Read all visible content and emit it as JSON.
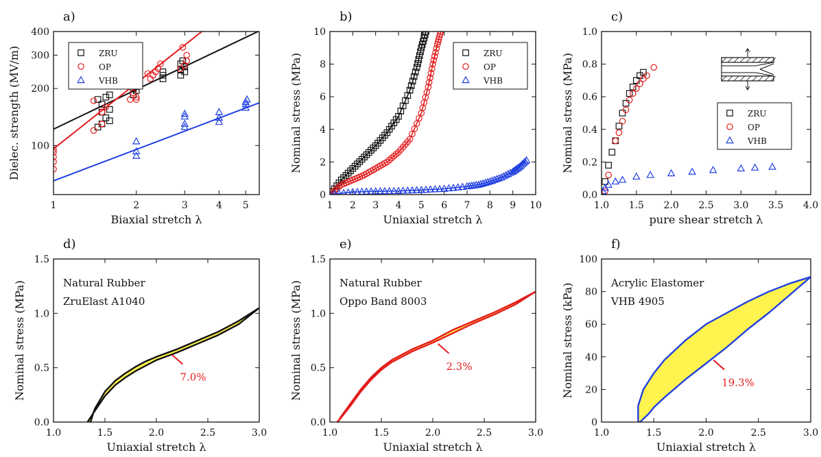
{
  "colors": {
    "zru": "#111111",
    "op": "#e31a1c",
    "vhb": "#1f3fe0",
    "fill": "#fff44f",
    "annotation": "#e31a1c"
  },
  "chart_data": [
    {
      "panel": "a)",
      "type": "scatter",
      "xlabel": "Biaxial stretch λ",
      "ylabel": "Dielec. strength (MV/m)",
      "xscale": "log",
      "yscale": "log",
      "xlim": [
        1,
        5.6
      ],
      "ylim": [
        55,
        400
      ],
      "xticks": [
        1,
        2,
        3,
        4,
        5
      ],
      "yticks": [
        100,
        200,
        300,
        400
      ],
      "ytick_labels": [
        "100",
        "200",
        "300",
        "400"
      ],
      "legend_position": "top-left",
      "series": [
        {
          "name": "ZRU",
          "marker": "square",
          "color_key": "zru",
          "x": [
            1.45,
            1.45,
            1.5,
            1.5,
            1.5,
            1.55,
            1.55,
            1.6,
            1.6,
            1.6,
            1.95,
            1.95,
            2.0,
            2.0,
            2.0,
            2.5,
            2.5,
            2.5,
            2.9,
            2.9,
            2.9,
            2.95,
            3.0,
            3.0
          ],
          "y": [
            125,
            175,
            130,
            150,
            165,
            140,
            180,
            135,
            155,
            185,
            185,
            200,
            195,
            215,
            205,
            225,
            235,
            245,
            235,
            250,
            270,
            280,
            245,
            260
          ],
          "fit": {
            "x": [
              1,
              5.6
            ],
            "y": [
              122,
              403
            ]
          }
        },
        {
          "name": "OP",
          "marker": "circle",
          "color_key": "op",
          "x": [
            1,
            1,
            1,
            1,
            1,
            1.4,
            1.4,
            1.5,
            1.5,
            1.55,
            1.9,
            1.9,
            1.95,
            2.0,
            2.0,
            2.05,
            2.05,
            2.2,
            2.25,
            2.3,
            2.35,
            2.4,
            2.45,
            2.9,
            2.95,
            3.0,
            3.05,
            3.05
          ],
          "y": [
            75,
            82,
            87,
            92,
            95,
            120,
            172,
            130,
            150,
            160,
            175,
            205,
            190,
            180,
            175,
            210,
            220,
            240,
            225,
            235,
            245,
            255,
            270,
            255,
            330,
            265,
            280,
            300
          ],
          "fit": {
            "x": [
              1,
              3.5
            ],
            "y": [
              96,
              405
            ]
          }
        },
        {
          "name": "VHB",
          "marker": "triangle",
          "color_key": "vhb",
          "x": [
            2.0,
            2.0,
            2.0,
            3.0,
            3.0,
            3.0,
            3.0,
            4.0,
            4.0,
            4.0,
            5.0,
            5.0,
            5.0,
            5.05
          ],
          "y": [
            88,
            93,
            105,
            125,
            130,
            142,
            147,
            133,
            140,
            150,
            158,
            165,
            170,
            175
          ],
          "fit": {
            "x": [
              1,
              5.6
            ],
            "y": [
              65,
              168
            ]
          }
        }
      ]
    },
    {
      "panel": "b)",
      "type": "line",
      "xlabel": "Uniaxial stretch λ",
      "ylabel": "Nominal stress (MPa)",
      "xlim": [
        1,
        10
      ],
      "ylim": [
        0,
        10
      ],
      "xticks": [
        1,
        2,
        3,
        4,
        5,
        6,
        7,
        8,
        9,
        10
      ],
      "yticks": [
        0,
        2,
        4,
        6,
        8,
        10
      ],
      "legend_position": "top-right",
      "series": [
        {
          "name": "ZRU",
          "marker": "square",
          "color_key": "zru",
          "x": [
            1.0,
            1.5,
            2.0,
            2.5,
            3.0,
            3.5,
            4.0,
            4.5,
            4.8,
            5.0,
            5.2
          ],
          "y": [
            0,
            0.9,
            1.6,
            2.3,
            3.0,
            3.8,
            4.8,
            6.4,
            7.8,
            9.0,
            10.0
          ]
        },
        {
          "name": "OP",
          "marker": "circle",
          "color_key": "op",
          "x": [
            1.0,
            1.5,
            2.0,
            2.5,
            3.0,
            3.5,
            4.0,
            4.5,
            5.0,
            5.3,
            5.5,
            5.7,
            5.85
          ],
          "y": [
            0,
            0.6,
            0.9,
            1.2,
            1.6,
            2.0,
            2.6,
            3.4,
            5.0,
            6.6,
            8.0,
            9.2,
            10.0
          ]
        },
        {
          "name": "VHB",
          "marker": "triangle",
          "color_key": "vhb",
          "x": [
            1.0,
            2.0,
            3.0,
            4.0,
            5.0,
            6.0,
            7.0,
            7.5,
            8.0,
            8.5,
            9.0,
            9.3,
            9.6
          ],
          "y": [
            0,
            0.15,
            0.2,
            0.22,
            0.28,
            0.35,
            0.5,
            0.6,
            0.8,
            1.05,
            1.4,
            1.7,
            2.1
          ]
        }
      ]
    },
    {
      "panel": "c)",
      "type": "scatter",
      "xlabel": "pure shear stretch λ",
      "ylabel": "Nominal stress (MPa)",
      "xlim": [
        1.0,
        4.0
      ],
      "ylim": [
        0,
        1.0
      ],
      "xticks": [
        1.0,
        1.5,
        2.0,
        2.5,
        3.0,
        3.5,
        4.0
      ],
      "yticks": [
        0.0,
        0.2,
        0.4,
        0.6,
        0.8,
        1.0
      ],
      "legend_position": "middle-right",
      "series": [
        {
          "name": "ZRU",
          "marker": "square",
          "color_key": "zru",
          "x": [
            1.05,
            1.1,
            1.15,
            1.2,
            1.25,
            1.3,
            1.35,
            1.4,
            1.45,
            1.5,
            1.55,
            1.6
          ],
          "y": [
            0.08,
            0.18,
            0.26,
            0.33,
            0.42,
            0.5,
            0.56,
            0.62,
            0.66,
            0.7,
            0.73,
            0.75
          ]
        },
        {
          "name": "OP",
          "marker": "circle",
          "color_key": "op",
          "x": [
            1.05,
            1.1,
            1.2,
            1.25,
            1.3,
            1.35,
            1.4,
            1.45,
            1.5,
            1.55,
            1.6,
            1.65,
            1.75
          ],
          "y": [
            0.02,
            0.12,
            0.33,
            0.38,
            0.45,
            0.52,
            0.58,
            0.62,
            0.65,
            0.68,
            0.71,
            0.73,
            0.78
          ]
        },
        {
          "name": "VHB",
          "marker": "triangle",
          "color_key": "vhb",
          "x": [
            1.02,
            1.05,
            1.1,
            1.2,
            1.3,
            1.5,
            1.7,
            2.0,
            2.3,
            2.6,
            3.0,
            3.2,
            3.45
          ],
          "y": [
            0.02,
            0.04,
            0.06,
            0.08,
            0.09,
            0.11,
            0.12,
            0.13,
            0.14,
            0.15,
            0.16,
            0.165,
            0.17
          ]
        }
      ]
    },
    {
      "panel": "d)",
      "type": "area",
      "xlabel": "Uniaxial stretch λ",
      "ylabel": "Nominal stress (MPa)",
      "xlim": [
        1.0,
        3.0
      ],
      "ylim": [
        0,
        1.5
      ],
      "xticks": [
        1.0,
        1.5,
        2.0,
        2.5,
        3.0
      ],
      "yticks": [
        0.0,
        0.5,
        1.0,
        1.5
      ],
      "annotation_lines": [
        "Natural Rubber",
        "ZruElast A1040"
      ],
      "hysteresis_label": "7.0%",
      "hysteresis_at": [
        2.15,
        0.62
      ],
      "color_key": "zru",
      "loading": {
        "x": [
          1.36,
          1.4,
          1.5,
          1.6,
          1.7,
          1.8,
          1.9,
          2.0,
          2.2,
          2.4,
          2.6,
          2.8,
          3.0
        ],
        "y": [
          0,
          0.12,
          0.28,
          0.38,
          0.45,
          0.51,
          0.56,
          0.6,
          0.67,
          0.75,
          0.83,
          0.93,
          1.05
        ]
      },
      "unloading": {
        "x": [
          3.0,
          2.8,
          2.6,
          2.4,
          2.2,
          2.0,
          1.9,
          1.8,
          1.7,
          1.6,
          1.5,
          1.4,
          1.33
        ],
        "y": [
          1.05,
          0.9,
          0.8,
          0.72,
          0.64,
          0.57,
          0.52,
          0.47,
          0.41,
          0.34,
          0.24,
          0.1,
          0
        ]
      }
    },
    {
      "panel": "e)",
      "type": "area",
      "xlabel": "Uniaxial stretch λ",
      "ylabel": "Nominal stress (MPa)",
      "xlim": [
        1.0,
        3.0
      ],
      "ylim": [
        0,
        1.5
      ],
      "xticks": [
        1.0,
        1.5,
        2.0,
        2.5,
        3.0
      ],
      "yticks": [
        0.0,
        0.5,
        1.0,
        1.5
      ],
      "annotation_lines": [
        "Natural Rubber",
        "Oppo Band 8003"
      ],
      "hysteresis_label": "2.3%",
      "hysteresis_at": [
        2.05,
        0.72
      ],
      "color_key": "op",
      "loading": {
        "x": [
          1.08,
          1.1,
          1.2,
          1.3,
          1.4,
          1.5,
          1.6,
          1.8,
          2.0,
          2.2,
          2.4,
          2.6,
          2.8,
          3.0
        ],
        "y": [
          0,
          0.04,
          0.17,
          0.3,
          0.41,
          0.5,
          0.57,
          0.67,
          0.75,
          0.85,
          0.93,
          1.01,
          1.1,
          1.2
        ]
      },
      "unloading": {
        "x": [
          3.0,
          2.8,
          2.6,
          2.4,
          2.2,
          2.0,
          1.8,
          1.6,
          1.5,
          1.4,
          1.3,
          1.2,
          1.1,
          1.07
        ],
        "y": [
          1.2,
          1.08,
          0.99,
          0.91,
          0.82,
          0.73,
          0.65,
          0.55,
          0.48,
          0.39,
          0.28,
          0.15,
          0.03,
          0
        ]
      }
    },
    {
      "panel": "f)",
      "type": "area",
      "xlabel": "Uniaxial stretch λ",
      "ylabel": "Nominal stress (kPa)",
      "xlim": [
        1.0,
        3.0
      ],
      "ylim": [
        0,
        100
      ],
      "xticks": [
        1.0,
        1.5,
        2.0,
        2.5,
        3.0
      ],
      "yticks": [
        0,
        20,
        40,
        60,
        80,
        100
      ],
      "annotation_lines": [
        "Acrylic Elastomer",
        "VHB 4905"
      ],
      "hysteresis_label": "19.3%",
      "hysteresis_at": [
        2.07,
        38
      ],
      "color_key": "vhb",
      "loading": {
        "x": [
          1.35,
          1.35,
          1.4,
          1.5,
          1.6,
          1.8,
          2.0,
          2.2,
          2.4,
          2.6,
          2.8,
          3.0
        ],
        "y": [
          0,
          10,
          20,
          30,
          38,
          50,
          60,
          67,
          74,
          80,
          85,
          89
        ]
      },
      "unloading": {
        "x": [
          3.0,
          2.8,
          2.6,
          2.4,
          2.2,
          2.0,
          1.8,
          1.6,
          1.5,
          1.45,
          1.4,
          1.37
        ],
        "y": [
          89,
          78,
          67,
          57,
          46,
          36,
          26,
          15,
          9,
          5,
          2,
          0
        ]
      }
    }
  ]
}
